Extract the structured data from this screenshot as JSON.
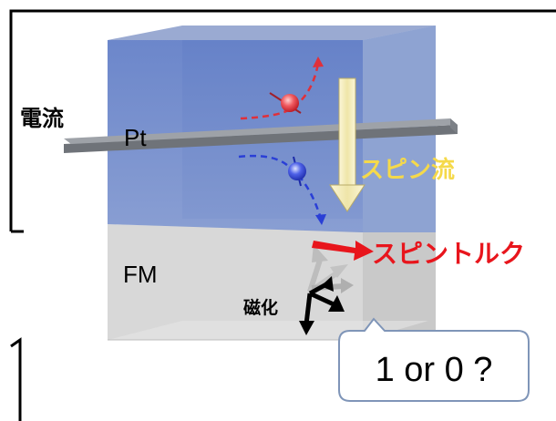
{
  "labels": {
    "current": "電流",
    "pt": "Pt",
    "spin_current": "スピン流",
    "fm": "FM",
    "spin_torque": "スピントルク",
    "magnetization": "磁化"
  },
  "callout": {
    "text": "1 or 0 ?"
  },
  "colors": {
    "pt_layer": "#6d86c4",
    "fm_layer": "#d6d6d6",
    "current_bar": "#8f9399",
    "spin_current_arrow": "#f6efc3",
    "spin_current_text": "#f5d94a",
    "spin_up": "#e0303a",
    "spin_down": "#2a3fd6",
    "torque": "#e8151c",
    "magnetization": "#000000"
  }
}
